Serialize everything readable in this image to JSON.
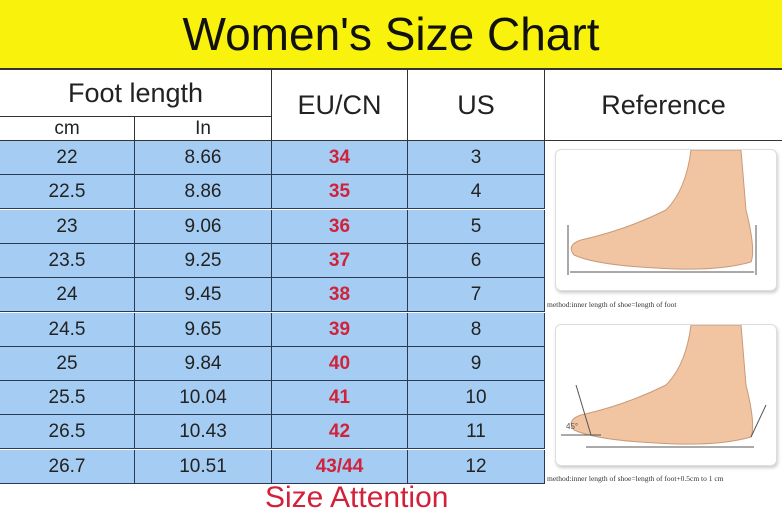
{
  "title": "Women's Size Chart",
  "headers": {
    "foot_length": "Foot length",
    "cm": "cm",
    "in": "In",
    "eu": "EU/CN",
    "us": "US",
    "reference": "Reference"
  },
  "rows": [
    {
      "cm": "22",
      "in": "8.66",
      "eu": "34",
      "us": "3"
    },
    {
      "cm": "22.5",
      "in": "8.86",
      "eu": "35",
      "us": "4"
    },
    {
      "cm": "23",
      "in": "9.06",
      "eu": "36",
      "us": "5"
    },
    {
      "cm": "23.5",
      "in": "9.25",
      "eu": "37",
      "us": "6"
    },
    {
      "cm": "24",
      "in": "9.45",
      "eu": "38",
      "us": "7"
    },
    {
      "cm": "24.5",
      "in": "9.65",
      "eu": "39",
      "us": "8"
    },
    {
      "cm": "25",
      "in": "9.84",
      "eu": "40",
      "us": "9"
    },
    {
      "cm": "25.5",
      "in": "10.04",
      "eu": "41",
      "us": "10"
    },
    {
      "cm": "26.5",
      "in": "10.43",
      "eu": "42",
      "us": "11"
    },
    {
      "cm": "26.7",
      "in": "10.51",
      "eu": "43/44",
      "us": "12"
    }
  ],
  "reference": {
    "caption1": "method:inner length of shoe=length of foot",
    "caption2": "method:inner length of shoe=length of foot+0.5cm to 1 cm",
    "angle": "45°"
  },
  "footer": "Size Attention",
  "colors": {
    "title_bg": "#f8f20c",
    "row_bg": "#a5cdf3",
    "eu_text": "#d0223a"
  }
}
